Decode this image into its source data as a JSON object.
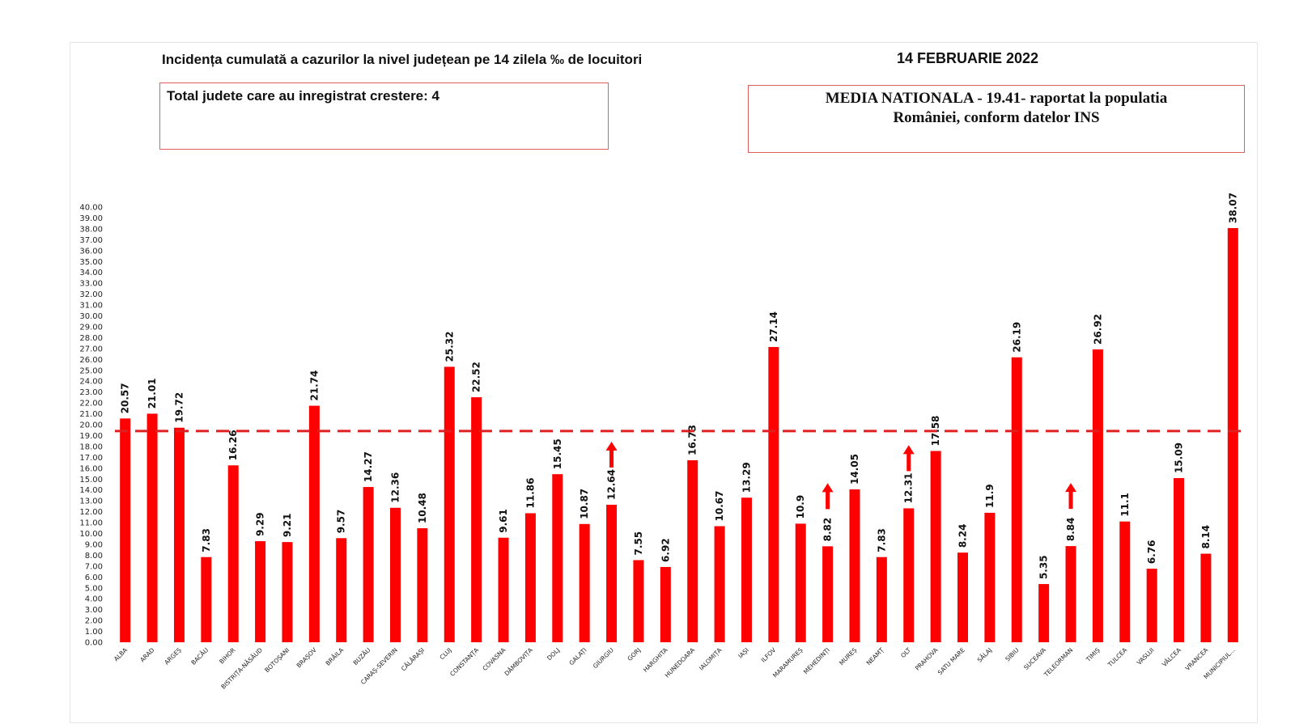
{
  "title": "Incidența cumulată a cazurilor la nivel județean pe 14 zilela ‰ de locuitori",
  "date": "14 FEBRUARIE 2022",
  "info_box": {
    "text": "Total judete care au inregistrat crestere: 4"
  },
  "national_box": {
    "line1": "MEDIA NATIONALA - 19.41-  raportat la populatia",
    "line2": "României, conform datelor INS"
  },
  "colors": {
    "bar": "#ff0000",
    "reference_line": "#e02020",
    "box_border": "#e35b5b"
  },
  "chart_data": {
    "type": "bar",
    "title": "Incidența cumulată a cazurilor la nivel județean pe 14 zilela ‰ de locuitori",
    "xlabel": "",
    "ylabel": "",
    "ylim": [
      0,
      40
    ],
    "y_tick_step": 1,
    "grid": false,
    "reference_line": {
      "value": 19.41,
      "label": "MEDIA NATIONALA",
      "style": "dashed"
    },
    "categories": [
      "ALBA",
      "ARAD",
      "ARGEȘ",
      "BACĂU",
      "BIHOR",
      "BISTRIȚA-NĂSĂUD",
      "BOTOȘANI",
      "BRAȘOV",
      "BRĂILA",
      "BUZĂU",
      "CARAȘ-SEVERIN",
      "CĂLĂRAȘI",
      "CLUJ",
      "CONSTANȚA",
      "COVASNA",
      "DÂMBOVIȚA",
      "DOLJ",
      "GALAȚI",
      "GIURGIU",
      "GORJ",
      "HARGHITA",
      "HUNEDOARA",
      "IALOMIȚA",
      "IAȘI",
      "ILFOV",
      "MARAMUREȘ",
      "MEHEDINȚI",
      "MUREȘ",
      "NEAMȚ",
      "OLT",
      "PRAHOVA",
      "SATU MARE",
      "SĂLAJ",
      "SIBIU",
      "SUCEAVA",
      "TELEORMAN",
      "TIMIȘ",
      "TULCEA",
      "VASLUI",
      "VÂLCEA",
      "VRANCEA",
      "MUNICIPIUL..."
    ],
    "values": [
      20.57,
      21.01,
      19.72,
      7.83,
      16.26,
      9.29,
      9.21,
      21.74,
      9.57,
      14.27,
      12.36,
      10.48,
      25.32,
      22.52,
      9.61,
      11.86,
      15.45,
      10.87,
      12.64,
      7.55,
      6.92,
      16.73,
      10.67,
      13.29,
      27.14,
      10.9,
      8.82,
      14.05,
      7.83,
      12.31,
      17.58,
      8.24,
      11.9,
      26.19,
      5.35,
      8.84,
      26.92,
      11.1,
      6.76,
      15.09,
      8.14,
      38.07
    ],
    "value_labels": [
      "20.57",
      "21.01",
      "19.72",
      "7.83",
      "16.26",
      "9.29",
      "9.21",
      "21.74",
      "9.57",
      "14.27",
      "12.36",
      "10.48",
      "25.32",
      "22.52",
      "9.61",
      "11.86",
      "15.45",
      "10.87",
      "12.64",
      "7.55",
      "6.92",
      "16.73",
      "10.67",
      "13.29",
      "27.14",
      "10.9",
      "8.82",
      "14.05",
      "7.83",
      "12.31",
      "17.58",
      "8.24",
      "11.9",
      "26.19",
      "5.35",
      "8.84",
      "26.92",
      "11.1",
      "6.76",
      "15.09",
      "8.14",
      "38.07"
    ],
    "increase_arrows": [
      "GIURGIU",
      "MEHEDINȚI",
      "OLT",
      "TELEORMAN"
    ]
  }
}
